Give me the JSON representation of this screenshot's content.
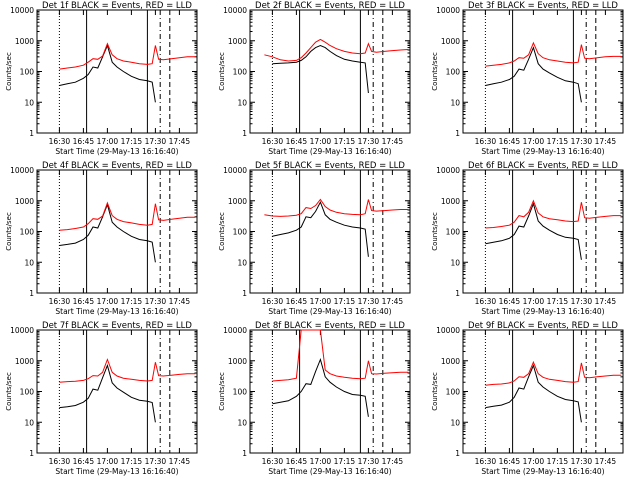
{
  "colors": {
    "events": "#000000",
    "lld": "#ff0000",
    "axes": "#000000",
    "background": "#ffffff"
  },
  "chart_data": [
    {
      "type": "line",
      "title": "Det 1f BLACK = Events, RED = LLD",
      "xlabel": "Start Time (29-May-13 16:16:40)",
      "ylabel": "Counts/sec",
      "y_scale": "log",
      "ylim": [
        1,
        10000
      ],
      "xlim": [
        "16:16",
        "17:56"
      ],
      "x_ticks": [
        "16:30",
        "16:45",
        "17:00",
        "17:15",
        "17:30",
        "17:45"
      ],
      "y_ticks": [
        "1",
        "10",
        "100",
        "1000",
        "10000"
      ],
      "x": [
        "16:20",
        "16:25",
        "16:30",
        "16:35",
        "16:40",
        "16:45",
        "16:48",
        "16:51",
        "16:54",
        "16:57",
        "17:00",
        "17:03",
        "17:06",
        "17:10",
        "17:15",
        "17:20",
        "17:25",
        "17:28",
        "17:30",
        "17:32",
        "17:35",
        "17:40",
        "17:45",
        "17:50",
        "17:55"
      ],
      "series": [
        {
          "name": "Events",
          "values": [
            null,
            null,
            35,
            40,
            45,
            60,
            80,
            140,
            130,
            300,
            700,
            200,
            140,
            100,
            70,
            55,
            50,
            45,
            10,
            null,
            null,
            null,
            null,
            null,
            null
          ]
        },
        {
          "name": "LLD",
          "values": [
            null,
            null,
            120,
            130,
            140,
            160,
            200,
            260,
            250,
            320,
            800,
            350,
            260,
            220,
            200,
            180,
            170,
            180,
            700,
            250,
            240,
            260,
            280,
            300,
            300
          ]
        }
      ]
    },
    {
      "type": "line",
      "title": "Det 2f BLACK = Events, RED = LLD",
      "xlabel": "Start Time (29-May-13 16:16:40)",
      "ylabel": "Counts/sec",
      "y_scale": "log",
      "ylim": [
        1,
        10000
      ],
      "xlim": [
        "16:16",
        "17:56"
      ],
      "x_ticks": [
        "16:30",
        "16:45",
        "17:00",
        "17:15",
        "17:30",
        "17:45"
      ],
      "y_ticks": [
        "1",
        "10",
        "100",
        "1000",
        "10000"
      ],
      "x": [
        "16:20",
        "16:25",
        "16:30",
        "16:35",
        "16:40",
        "16:45",
        "16:48",
        "16:51",
        "16:54",
        "16:57",
        "17:00",
        "17:03",
        "17:06",
        "17:10",
        "17:15",
        "17:20",
        "17:25",
        "17:28",
        "17:30",
        "17:32",
        "17:35",
        "17:40",
        "17:45",
        "17:50",
        "17:55"
      ],
      "series": [
        {
          "name": "Events",
          "values": [
            null,
            null,
            180,
            185,
            190,
            200,
            230,
            300,
            450,
            600,
            700,
            600,
            450,
            330,
            250,
            220,
            200,
            190,
            20,
            null,
            null,
            null,
            null,
            null,
            null
          ]
        },
        {
          "name": "LLD",
          "values": [
            null,
            350,
            300,
            240,
            220,
            230,
            280,
            400,
            600,
            900,
            1100,
            900,
            700,
            550,
            450,
            400,
            380,
            400,
            800,
            450,
            420,
            450,
            480,
            500,
            520
          ]
        }
      ]
    },
    {
      "type": "line",
      "title": "Det 3f BLACK = Events, RED = LLD",
      "xlabel": "Start Time (29-May-13 16:16:40)",
      "ylabel": "Counts/sec",
      "y_scale": "log",
      "ylim": [
        1,
        10000
      ],
      "xlim": [
        "16:16",
        "17:56"
      ],
      "x_ticks": [
        "16:30",
        "16:45",
        "17:00",
        "17:15",
        "17:30",
        "17:45"
      ],
      "y_ticks": [
        "1",
        "10",
        "100",
        "1000",
        "10000"
      ],
      "x": [
        "16:20",
        "16:25",
        "16:30",
        "16:35",
        "16:40",
        "16:45",
        "16:48",
        "16:51",
        "16:54",
        "16:57",
        "17:00",
        "17:03",
        "17:06",
        "17:10",
        "17:15",
        "17:20",
        "17:25",
        "17:28",
        "17:30",
        "17:32",
        "17:35",
        "17:40",
        "17:45",
        "17:50",
        "17:55"
      ],
      "series": [
        {
          "name": "Events",
          "values": [
            null,
            null,
            35,
            40,
            45,
            55,
            70,
            120,
            110,
            250,
            600,
            180,
            120,
            90,
            65,
            50,
            45,
            40,
            10,
            null,
            null,
            null,
            null,
            null,
            null
          ]
        },
        {
          "name": "LLD",
          "values": [
            null,
            null,
            150,
            160,
            170,
            190,
            220,
            280,
            270,
            350,
            850,
            380,
            280,
            240,
            220,
            200,
            190,
            200,
            750,
            270,
            260,
            280,
            300,
            310,
            310
          ]
        }
      ]
    },
    {
      "type": "line",
      "title": "Det 4f BLACK = Events, RED = LLD",
      "xlabel": "Start Time (29-May-13 16:16:40)",
      "ylabel": "Counts/sec",
      "y_scale": "log",
      "ylim": [
        1,
        10000
      ],
      "xlim": [
        "16:16",
        "17:56"
      ],
      "x_ticks": [
        "16:30",
        "16:45",
        "17:00",
        "17:15",
        "17:30",
        "17:45"
      ],
      "y_ticks": [
        "1",
        "10",
        "100",
        "1000",
        "10000"
      ],
      "x": [
        "16:20",
        "16:25",
        "16:30",
        "16:35",
        "16:40",
        "16:45",
        "16:48",
        "16:51",
        "16:54",
        "16:57",
        "17:00",
        "17:03",
        "17:06",
        "17:10",
        "17:15",
        "17:20",
        "17:25",
        "17:28",
        "17:30",
        "17:32",
        "17:35",
        "17:40",
        "17:45",
        "17:50",
        "17:55"
      ],
      "series": [
        {
          "name": "Events",
          "values": [
            null,
            null,
            35,
            38,
            42,
            55,
            75,
            140,
            130,
            300,
            750,
            200,
            140,
            100,
            70,
            55,
            50,
            45,
            10,
            null,
            null,
            null,
            null,
            null,
            null
          ]
        },
        {
          "name": "LLD",
          "values": [
            null,
            null,
            110,
            115,
            125,
            140,
            180,
            260,
            250,
            320,
            850,
            330,
            250,
            210,
            190,
            170,
            160,
            170,
            800,
            240,
            230,
            250,
            270,
            290,
            290
          ]
        }
      ]
    },
    {
      "type": "line",
      "title": "Det 5f BLACK = Events, RED = LLD",
      "xlabel": "Start Time (29-May-13 16:16:40)",
      "ylabel": "Counts/sec",
      "y_scale": "log",
      "ylim": [
        1,
        10000
      ],
      "xlim": [
        "16:16",
        "17:56"
      ],
      "x_ticks": [
        "16:30",
        "16:45",
        "17:00",
        "17:15",
        "17:30",
        "17:45"
      ],
      "y_ticks": [
        "1",
        "10",
        "100",
        "1000",
        "10000"
      ],
      "x": [
        "16:20",
        "16:25",
        "16:30",
        "16:35",
        "16:40",
        "16:45",
        "16:48",
        "16:51",
        "16:54",
        "16:57",
        "17:00",
        "17:03",
        "17:06",
        "17:10",
        "17:15",
        "17:20",
        "17:25",
        "17:28",
        "17:30",
        "17:32",
        "17:35",
        "17:40",
        "17:45",
        "17:50",
        "17:55"
      ],
      "series": [
        {
          "name": "Events",
          "values": [
            null,
            null,
            70,
            80,
            90,
            110,
            140,
            300,
            280,
            450,
            900,
            350,
            250,
            200,
            160,
            140,
            130,
            120,
            15,
            null,
            null,
            null,
            null,
            null,
            null
          ]
        },
        {
          "name": "LLD",
          "values": [
            null,
            350,
            320,
            310,
            320,
            340,
            380,
            600,
            560,
            700,
            1100,
            650,
            500,
            420,
            380,
            360,
            350,
            380,
            1100,
            480,
            460,
            480,
            500,
            520,
            520
          ]
        }
      ]
    },
    {
      "type": "line",
      "title": "Det 6f BLACK = Events, RED = LLD",
      "xlabel": "Start Time (29-May-13 16:16:40)",
      "ylabel": "Counts/sec",
      "y_scale": "log",
      "ylim": [
        1,
        10000
      ],
      "xlim": [
        "16:16",
        "17:56"
      ],
      "x_ticks": [
        "16:30",
        "16:45",
        "17:00",
        "17:15",
        "17:30",
        "17:45"
      ],
      "y_ticks": [
        "1",
        "10",
        "100",
        "1000",
        "10000"
      ],
      "x": [
        "16:20",
        "16:25",
        "16:30",
        "16:35",
        "16:40",
        "16:45",
        "16:48",
        "16:51",
        "16:54",
        "16:57",
        "17:00",
        "17:03",
        "17:06",
        "17:10",
        "17:15",
        "17:20",
        "17:25",
        "17:28",
        "17:30",
        "17:32",
        "17:35",
        "17:40",
        "17:45",
        "17:50",
        "17:55"
      ],
      "series": [
        {
          "name": "Events",
          "values": [
            null,
            null,
            40,
            45,
            50,
            60,
            80,
            150,
            140,
            320,
            800,
            220,
            150,
            110,
            80,
            65,
            60,
            55,
            12,
            null,
            null,
            null,
            null,
            null,
            null
          ]
        },
        {
          "name": "LLD",
          "values": [
            null,
            null,
            130,
            135,
            145,
            160,
            200,
            330,
            300,
            420,
            1000,
            400,
            300,
            260,
            240,
            220,
            210,
            220,
            900,
            280,
            270,
            290,
            310,
            330,
            330
          ]
        }
      ]
    },
    {
      "type": "line",
      "title": "Det 7f BLACK = Events, RED = LLD",
      "xlabel": "Start Time (29-May-13 16:16:40)",
      "ylabel": "Counts/sec",
      "y_scale": "log",
      "ylim": [
        1,
        10000
      ],
      "xlim": [
        "16:16",
        "17:56"
      ],
      "x_ticks": [
        "16:30",
        "16:45",
        "17:00",
        "17:15",
        "17:30",
        "17:45"
      ],
      "y_ticks": [
        "1",
        "10",
        "100",
        "1000",
        "10000"
      ],
      "x": [
        "16:20",
        "16:25",
        "16:30",
        "16:35",
        "16:40",
        "16:45",
        "16:48",
        "16:51",
        "16:54",
        "16:57",
        "17:00",
        "17:03",
        "17:06",
        "17:10",
        "17:15",
        "17:20",
        "17:25",
        "17:28",
        "17:30",
        "17:32",
        "17:35",
        "17:40",
        "17:45",
        "17:50",
        "17:55"
      ],
      "series": [
        {
          "name": "Events",
          "values": [
            null,
            null,
            30,
            32,
            35,
            45,
            60,
            120,
            110,
            280,
            700,
            190,
            130,
            95,
            65,
            52,
            48,
            44,
            10,
            null,
            null,
            null,
            null,
            null,
            null
          ]
        },
        {
          "name": "LLD",
          "values": [
            null,
            null,
            200,
            210,
            215,
            230,
            260,
            330,
            320,
            420,
            1100,
            420,
            320,
            270,
            250,
            230,
            220,
            230,
            900,
            330,
            320,
            340,
            360,
            380,
            380
          ]
        }
      ]
    },
    {
      "type": "line",
      "title": "Det 8f BLACK = Events, RED = LLD",
      "xlabel": "Start Time (29-May-13 16:16:40)",
      "ylabel": "Counts/sec",
      "y_scale": "log",
      "ylim": [
        1,
        10000
      ],
      "xlim": [
        "16:16",
        "17:56"
      ],
      "x_ticks": [
        "16:30",
        "16:45",
        "17:00",
        "17:15",
        "17:30",
        "17:45"
      ],
      "y_ticks": [
        "1",
        "10",
        "100",
        "1000",
        "10000"
      ],
      "x": [
        "16:20",
        "16:25",
        "16:30",
        "16:35",
        "16:40",
        "16:45",
        "16:48",
        "16:51",
        "16:54",
        "16:57",
        "17:00",
        "17:03",
        "17:06",
        "17:10",
        "17:15",
        "17:20",
        "17:25",
        "17:28",
        "17:30",
        "17:32",
        "17:35",
        "17:40",
        "17:45",
        "17:50",
        "17:55"
      ],
      "series": [
        {
          "name": "Events",
          "values": [
            null,
            null,
            40,
            45,
            50,
            70,
            100,
            180,
            170,
            450,
            1100,
            300,
            200,
            140,
            100,
            80,
            75,
            70,
            15,
            null,
            null,
            null,
            null,
            null,
            null
          ]
        },
        {
          "name": "LLD",
          "values": [
            null,
            null,
            220,
            230,
            240,
            270,
            10000,
            10000,
            10000,
            10000,
            10000,
            500,
            380,
            320,
            290,
            270,
            260,
            270,
            1000,
            380,
            370,
            390,
            410,
            420,
            420
          ]
        }
      ]
    },
    {
      "type": "line",
      "title": "Det 9f BLACK = Events, RED = LLD",
      "xlabel": "Start Time (29-May-13 16:16:40)",
      "ylabel": "Counts/sec",
      "y_scale": "log",
      "ylim": [
        1,
        10000
      ],
      "xlim": [
        "16:16",
        "17:56"
      ],
      "x_ticks": [
        "16:30",
        "16:45",
        "17:00",
        "17:15",
        "17:30",
        "17:45"
      ],
      "y_ticks": [
        "1",
        "10",
        "100",
        "1000",
        "10000"
      ],
      "x": [
        "16:20",
        "16:25",
        "16:30",
        "16:35",
        "16:40",
        "16:45",
        "16:48",
        "16:51",
        "16:54",
        "16:57",
        "17:00",
        "17:03",
        "17:06",
        "17:10",
        "17:15",
        "17:20",
        "17:25",
        "17:28",
        "17:30",
        "17:32",
        "17:35",
        "17:40",
        "17:45",
        "17:50",
        "17:55"
      ],
      "series": [
        {
          "name": "Events",
          "values": [
            null,
            null,
            30,
            33,
            36,
            45,
            65,
            130,
            120,
            300,
            700,
            200,
            140,
            100,
            70,
            55,
            50,
            46,
            10,
            null,
            null,
            null,
            null,
            null,
            null
          ]
        },
        {
          "name": "LLD",
          "values": [
            null,
            null,
            160,
            170,
            175,
            190,
            220,
            300,
            290,
            380,
            900,
            380,
            290,
            250,
            230,
            210,
            200,
            210,
            850,
            290,
            280,
            300,
            320,
            340,
            340
          ]
        }
      ]
    }
  ]
}
